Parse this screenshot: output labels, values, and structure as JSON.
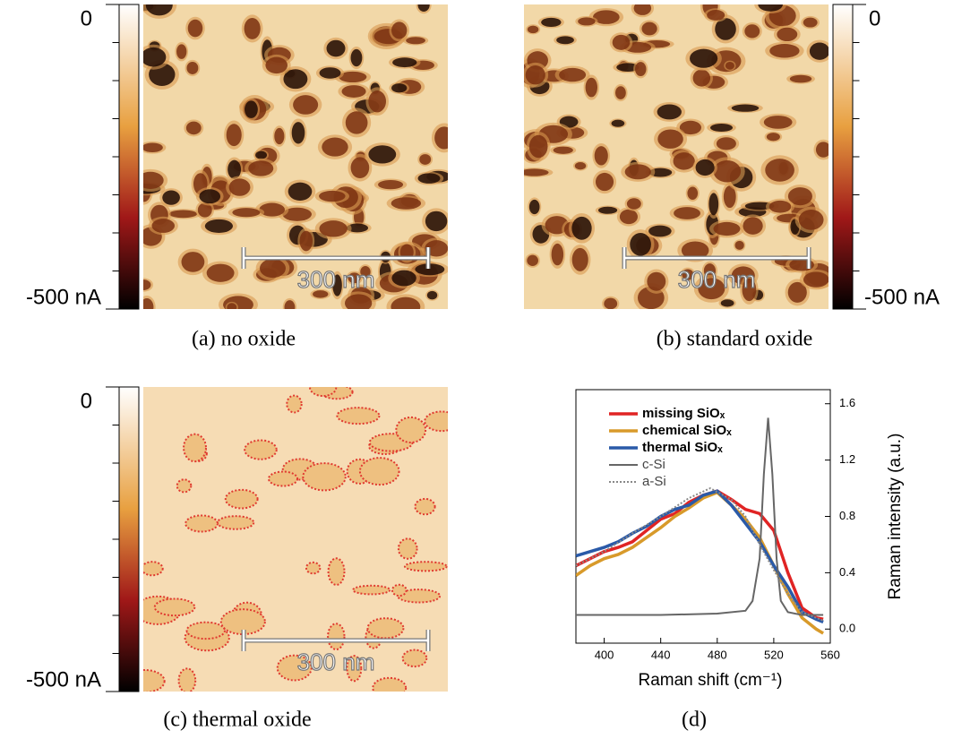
{
  "panels": [
    {
      "caption": "(a) no oxide",
      "colorbar_max": "0",
      "colorbar_min": "-500 nA",
      "scale_bar": "300 nm"
    },
    {
      "caption": "(b) standard oxide",
      "colorbar_max": "0",
      "colorbar_min": "-500 nA",
      "scale_bar": "300 nm"
    },
    {
      "caption": "(c) thermal oxide",
      "colorbar_max": "0",
      "colorbar_min": "-500 nA",
      "scale_bar": "300 nm"
    }
  ],
  "chart_data": {
    "type": "line",
    "caption": "(d)",
    "x_label": "Raman shift (cm⁻¹)",
    "y_label": "Raman intensity (a.u.)",
    "xlim": [
      380,
      560
    ],
    "xticks": [
      400,
      440,
      480,
      520,
      560
    ],
    "ylim": [
      -0.1,
      1.7
    ],
    "yticks": [
      {
        "value": 0,
        "label": "0.0"
      },
      0.4,
      0.8,
      1.2,
      1.6
    ],
    "series": [
      {
        "name": "missing SiOₓ",
        "color": "#e02424",
        "bold": true,
        "x": [
          380,
          390,
          400,
          410,
          420,
          430,
          440,
          450,
          460,
          470,
          480,
          490,
          500,
          510,
          520,
          530,
          540,
          550,
          555
        ],
        "values": [
          0.45,
          0.5,
          0.55,
          0.58,
          0.62,
          0.7,
          0.78,
          0.82,
          0.9,
          0.95,
          0.98,
          0.92,
          0.85,
          0.82,
          0.7,
          0.4,
          0.15,
          0.08,
          0.07
        ]
      },
      {
        "name": "chemical SiOₓ",
        "color": "#d89a2a",
        "bold": true,
        "x": [
          380,
          390,
          400,
          410,
          420,
          430,
          440,
          450,
          460,
          470,
          480,
          490,
          500,
          510,
          520,
          530,
          540,
          550,
          555
        ],
        "values": [
          0.38,
          0.45,
          0.5,
          0.53,
          0.58,
          0.65,
          0.72,
          0.8,
          0.86,
          0.93,
          0.97,
          0.88,
          0.78,
          0.65,
          0.45,
          0.25,
          0.08,
          0.0,
          -0.03
        ]
      },
      {
        "name": "thermal SiOₓ",
        "color": "#2a5aa8",
        "bold": true,
        "x": [
          380,
          390,
          400,
          410,
          420,
          430,
          440,
          450,
          460,
          470,
          480,
          490,
          500,
          510,
          520,
          530,
          540,
          550,
          555
        ],
        "values": [
          0.52,
          0.55,
          0.58,
          0.62,
          0.68,
          0.73,
          0.8,
          0.85,
          0.88,
          0.95,
          0.98,
          0.88,
          0.75,
          0.62,
          0.45,
          0.3,
          0.12,
          0.07,
          0.05
        ]
      },
      {
        "name": "c-Si",
        "color": "#666666",
        "bold": false,
        "x": [
          380,
          400,
          440,
          480,
          500,
          505,
          510,
          513,
          516,
          519,
          522,
          525,
          530,
          540,
          555
        ],
        "values": [
          0.1,
          0.1,
          0.1,
          0.11,
          0.13,
          0.2,
          0.5,
          1.1,
          1.5,
          1.1,
          0.5,
          0.2,
          0.12,
          0.1,
          0.1
        ]
      },
      {
        "name": "a-Si",
        "color": "#888888",
        "bold": false,
        "style": "dotted",
        "x": [
          380,
          400,
          420,
          440,
          460,
          475,
          490,
          500,
          510,
          520,
          530,
          540,
          555
        ],
        "values": [
          0.45,
          0.55,
          0.68,
          0.8,
          0.93,
          1.0,
          0.92,
          0.8,
          0.6,
          0.42,
          0.25,
          0.12,
          0.06
        ]
      }
    ]
  }
}
